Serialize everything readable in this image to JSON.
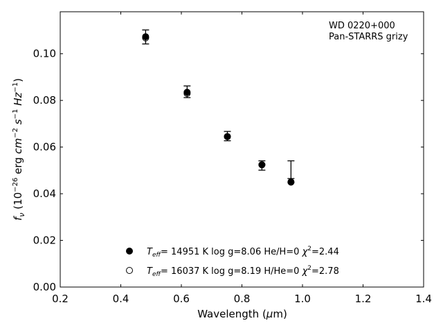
{
  "chart_data": {
    "type": "scatter",
    "xlabel_prefix": "Wavelength (",
    "xlabel_unit_symbol": "μ",
    "xlabel_unit_rest": "m)",
    "ylabel": "f_ν (10^-26 erg cm^-2 s^-1 Hz^-1)",
    "xlim": [
      0.2,
      1.4
    ],
    "ylim": [
      0.0,
      0.118
    ],
    "xticks": [
      "0.2",
      "0.4",
      "0.6",
      "0.8",
      "1.0",
      "1.2",
      "1.4"
    ],
    "yticks": [
      "0.00",
      "0.02",
      "0.04",
      "0.06",
      "0.08",
      "0.10"
    ],
    "annotation": [
      "WD 0220+000",
      "Pan-STARRS grizy"
    ],
    "observed": {
      "x": [
        0.482,
        0.619,
        0.752,
        0.866,
        0.962
      ],
      "y": [
        0.1072,
        0.0837,
        0.0647,
        0.0521,
        0.0503
      ],
      "yerr": [
        0.003,
        0.0025,
        0.002,
        0.002,
        0.0038
      ]
    },
    "series": [
      {
        "name": "T_eff= 14951 K  log g=8.06  He/H=0  χ²=2.44",
        "marker": "filled",
        "x": [
          0.482,
          0.619,
          0.752,
          0.866,
          0.962
        ],
        "y": [
          0.1073,
          0.0835,
          0.0645,
          0.0524,
          0.045
        ]
      },
      {
        "name": "T_eff= 16037 K  log g=8.19  H/He=0  χ²=2.78",
        "marker": "open",
        "x": [
          0.482,
          0.619,
          0.752,
          0.866,
          0.962
        ],
        "y": [
          0.1068,
          0.083,
          0.0645,
          0.0524,
          0.045
        ]
      }
    ],
    "legend": [
      {
        "teff": "= 14951 K  log g=8.06  He/H=0  ",
        "chi": "=2.44"
      },
      {
        "teff": "= 16037 K  log g=8.19  H/He=0  ",
        "chi": "=2.78"
      }
    ],
    "legend_position": "lower-center",
    "grid": false
  }
}
